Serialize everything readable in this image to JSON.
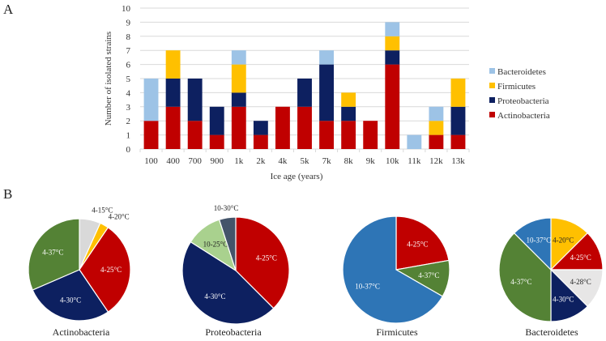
{
  "panels": {
    "a": "A",
    "b": "B"
  },
  "chart_data": [
    {
      "type": "bar",
      "stacked": true,
      "title": "",
      "xlabel": "Ice age (years)",
      "ylabel": "Number of isolated strains",
      "ylim": [
        0,
        10
      ],
      "yticks": [
        0,
        1,
        2,
        3,
        4,
        5,
        6,
        7,
        8,
        9,
        10
      ],
      "grid": true,
      "legend_position": "right",
      "categories": [
        "100",
        "400",
        "700",
        "900",
        "1k",
        "2k",
        "4k",
        "5k",
        "7k",
        "8k",
        "9k",
        "10k",
        "11k",
        "12k",
        "13k"
      ],
      "series": [
        {
          "name": "Actinobacteria",
          "color": "#c00000",
          "values": [
            2,
            3,
            2,
            1,
            3,
            1,
            3,
            3,
            2,
            2,
            2,
            6,
            0,
            1,
            1
          ]
        },
        {
          "name": "Proteobacteria",
          "color": "#0d2060",
          "values": [
            0,
            2,
            3,
            2,
            1,
            1,
            0,
            2,
            4,
            1,
            0,
            1,
            0,
            0,
            2
          ]
        },
        {
          "name": "Firmicutes",
          "color": "#ffc000",
          "values": [
            0,
            2,
            0,
            0,
            2,
            0,
            0,
            0,
            0,
            1,
            0,
            1,
            0,
            1,
            2
          ]
        },
        {
          "name": "Bacteroidetes",
          "color": "#9dc3e6",
          "values": [
            3,
            0,
            0,
            0,
            1,
            0,
            0,
            0,
            1,
            0,
            0,
            1,
            1,
            1,
            0
          ]
        }
      ],
      "legend_order": [
        "Bacteroidetes",
        "Firmicutes",
        "Proteobacteria",
        "Actinobacteria"
      ]
    },
    {
      "type": "pie",
      "title": "Actinobacteria",
      "slices": [
        {
          "label": "4-15°C",
          "value": 6.7,
          "color": "#d9d9d9",
          "label_color": "#222222",
          "outside": true
        },
        {
          "label": "4-20°C",
          "value": 2.8,
          "color": "#ffc000",
          "label_color": "#222222",
          "outside": true
        },
        {
          "label": "4-25°C",
          "value": 31.0,
          "color": "#c00000",
          "label_color": "#ffffff"
        },
        {
          "label": "4-30°C",
          "value": 28.0,
          "color": "#0d2060",
          "label_color": "#ffffff"
        },
        {
          "label": "4-37°C",
          "value": 31.5,
          "color": "#548235",
          "label_color": "#ffffff"
        }
      ]
    },
    {
      "type": "pie",
      "title": "Proteobacteria",
      "slices": [
        {
          "label": "4-25°C",
          "value": 37.5,
          "color": "#c00000",
          "label_color": "#ffffff"
        },
        {
          "label": "4-30°C",
          "value": 46.5,
          "color": "#0d2060",
          "label_color": "#ffffff"
        },
        {
          "label": "10-25°C",
          "value": 11.0,
          "color": "#a9d18e",
          "label_color": "#222222"
        },
        {
          "label": "10-30°C",
          "value": 5.0,
          "color": "#44546a",
          "label_color": "#222222",
          "outside": true
        }
      ]
    },
    {
      "type": "pie",
      "title": "Firmicutes",
      "slices": [
        {
          "label": "4-25°C",
          "value": 22.2,
          "color": "#c00000",
          "label_color": "#ffffff"
        },
        {
          "label": "4-37°C",
          "value": 11.1,
          "color": "#548235",
          "label_color": "#ffffff"
        },
        {
          "label": "10-37°C",
          "value": 66.7,
          "color": "#2e75b6",
          "label_color": "#ffffff"
        }
      ]
    },
    {
      "type": "pie",
      "title": "Bacteroidetes",
      "slices": [
        {
          "label": "4-20°C",
          "value": 12.5,
          "color": "#ffc000",
          "label_color": "#222222"
        },
        {
          "label": "4-25°C",
          "value": 12.5,
          "color": "#c00000",
          "label_color": "#ffffff"
        },
        {
          "label": "4-28°C",
          "value": 12.5,
          "color": "#e7e6e6",
          "label_color": "#222222"
        },
        {
          "label": "4-30°C",
          "value": 12.5,
          "color": "#0d2060",
          "label_color": "#ffffff"
        },
        {
          "label": "4-37°C",
          "value": 37.5,
          "color": "#548235",
          "label_color": "#ffffff"
        },
        {
          "label": "10-37°C",
          "value": 12.5,
          "color": "#2e75b6",
          "label_color": "#ffffff"
        }
      ]
    }
  ]
}
